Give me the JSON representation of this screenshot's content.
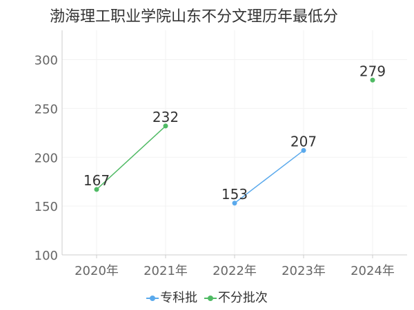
{
  "chart_data": {
    "type": "line",
    "title": "渤海理工职业学院山东不分文理历年最低分",
    "categories": [
      "2020年",
      "2021年",
      "2022年",
      "2023年",
      "2024年"
    ],
    "y_ticks": [
      "100",
      "150",
      "200",
      "250",
      "300"
    ],
    "ylim": [
      100,
      330
    ],
    "grid": true,
    "legend_position": "bottom",
    "series": [
      {
        "name": "专科批",
        "color": "#5aa9ec",
        "values": [
          null,
          null,
          153,
          207,
          null
        ]
      },
      {
        "name": "不分批次",
        "color": "#4fba64",
        "values": [
          167,
          232,
          null,
          null,
          279
        ]
      }
    ]
  }
}
